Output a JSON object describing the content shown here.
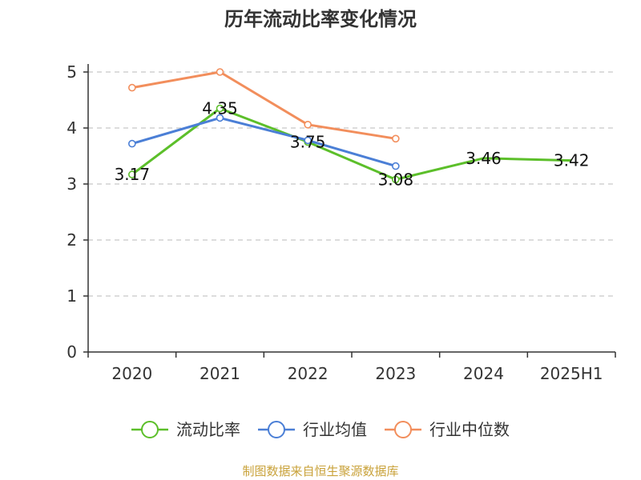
{
  "chart_data": {
    "type": "line",
    "title": "历年流动比率变化情况",
    "categories": [
      "2020",
      "2021",
      "2022",
      "2023",
      "2024",
      "2025H1"
    ],
    "ylim": [
      0,
      5
    ],
    "yticks": [
      0,
      1,
      2,
      3,
      4,
      5
    ],
    "grid": true,
    "legend_position": "bottom",
    "series": [
      {
        "name": "流动比率",
        "color": "#5cbf2a",
        "values": [
          3.17,
          4.35,
          3.75,
          3.08,
          3.46,
          3.42
        ],
        "labels": true
      },
      {
        "name": "行业均值",
        "color": "#4b7fd6",
        "values": [
          3.72,
          4.18,
          3.78,
          3.32,
          null,
          null
        ],
        "labels": false
      },
      {
        "name": "行业中位数",
        "color": "#f28e5c",
        "values": [
          4.72,
          5.0,
          4.06,
          3.81,
          null,
          null
        ],
        "labels": false
      }
    ],
    "source": "制图数据来自恒生聚源数据库"
  }
}
